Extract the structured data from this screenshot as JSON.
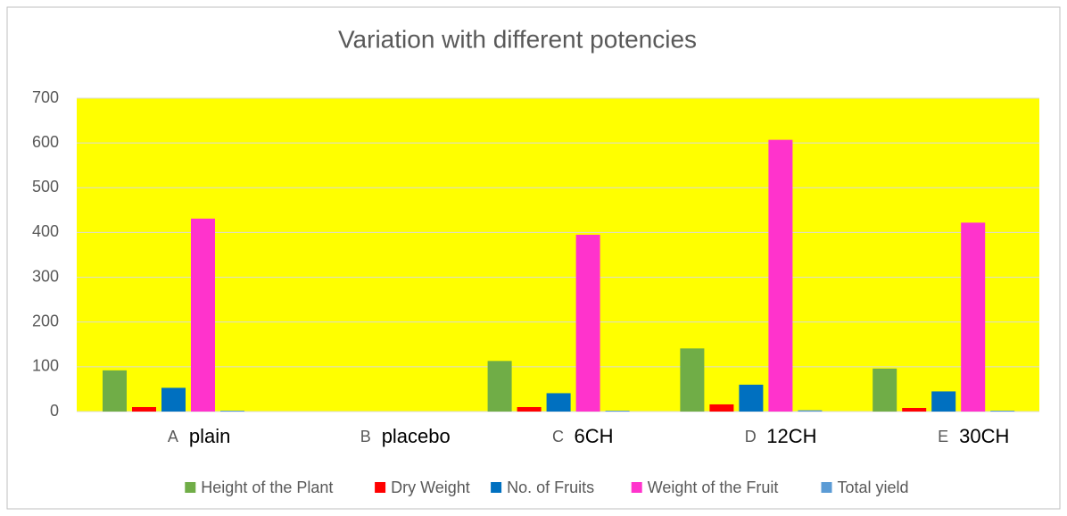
{
  "chart_data": {
    "type": "bar",
    "title": "Variation with different potencies",
    "categories": [
      "A",
      "B",
      "C",
      "D",
      "E"
    ],
    "annotations": [
      "plain",
      "placebo",
      "6CH",
      "12CH",
      "30CH"
    ],
    "series": [
      {
        "name": "Height of the Plant",
        "color": "#70ad47",
        "values": [
          92,
          0,
          113,
          141,
          96
        ]
      },
      {
        "name": "Dry Weight",
        "color": "#ff0000",
        "values": [
          10,
          0,
          10,
          16,
          8
        ]
      },
      {
        "name": "No. of Fruits",
        "color": "#0070c0",
        "values": [
          53,
          0,
          41,
          60,
          45
        ]
      },
      {
        "name": "Weight of the Fruit",
        "color": "#ff33cc",
        "values": [
          431,
          0,
          395,
          607,
          422
        ]
      },
      {
        "name": "Total yield",
        "color": "#5b9bd5",
        "values": [
          2,
          0,
          2,
          3,
          2
        ]
      }
    ],
    "ylim": [
      0,
      700
    ],
    "yticks": [
      0,
      100,
      200,
      300,
      400,
      500,
      600,
      700
    ],
    "grid": true,
    "plot_background": "#ffff00",
    "legend": "bottom"
  }
}
